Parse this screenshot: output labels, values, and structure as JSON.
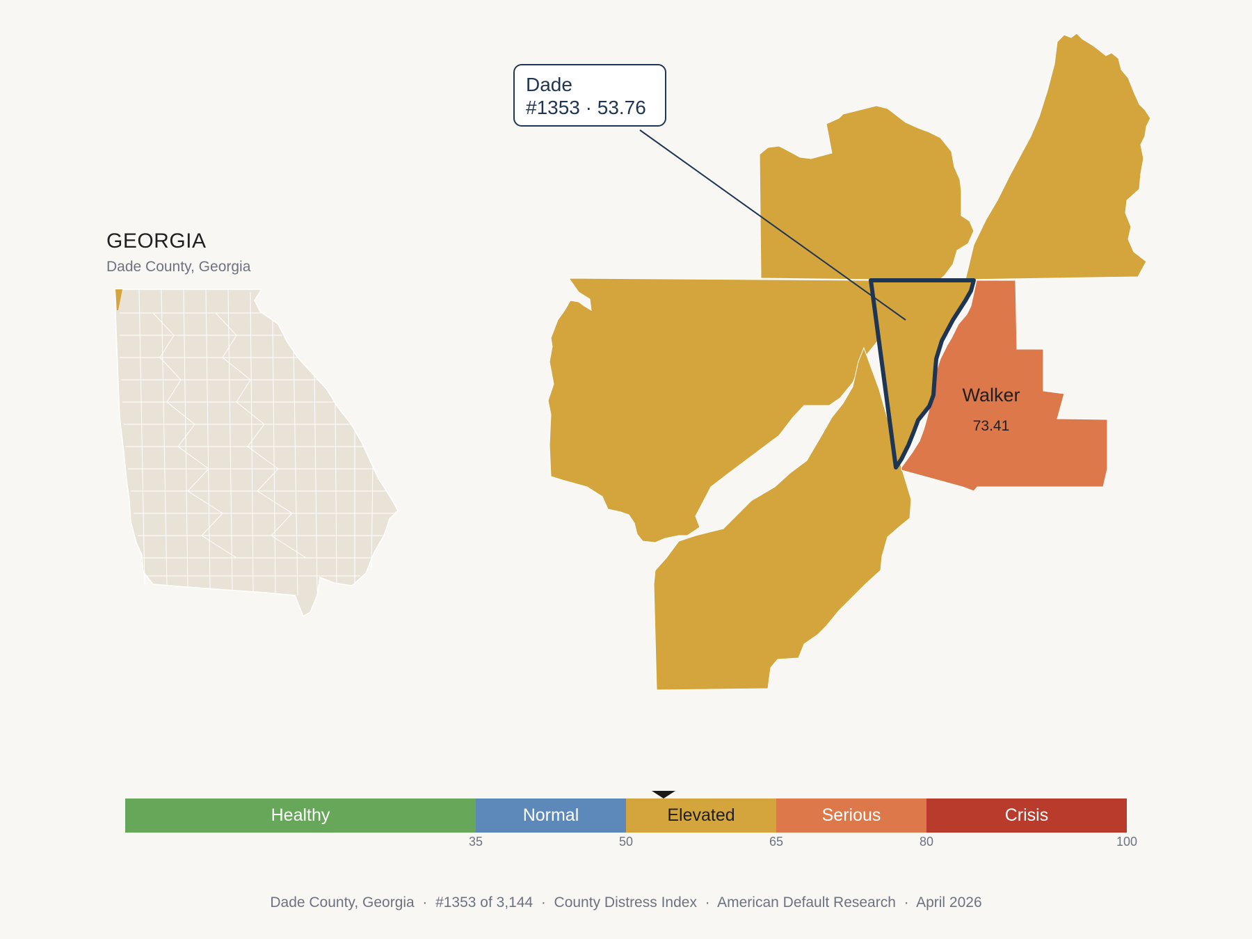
{
  "overview": {
    "state_name": "GEORGIA",
    "subtitle": "Dade County, Georgia"
  },
  "focus_county": {
    "name": "Dade",
    "rank_label": "#1353 · 53.76",
    "rank": 1353,
    "score": 53.76,
    "category": "Elevated",
    "fill": "#d4a53c",
    "outline": "#1e3553"
  },
  "neighbors": [
    {
      "name": "Walker",
      "value": "73.41",
      "category": "Serious",
      "fill": "#dc784a"
    }
  ],
  "neighbor_fill_default": "#d4a53c",
  "overview_fill": "#e8e2d7",
  "scale": {
    "bands": [
      {
        "label": "Healthy",
        "min": 0,
        "max": 35,
        "color": "#66a75a"
      },
      {
        "label": "Normal",
        "min": 35,
        "max": 50,
        "color": "#5d89ba"
      },
      {
        "label": "Elevated",
        "min": 50,
        "max": 65,
        "color": "#d4a53c"
      },
      {
        "label": "Serious",
        "min": 65,
        "max": 80,
        "color": "#dc784a"
      },
      {
        "label": "Crisis",
        "min": 80,
        "max": 100,
        "color": "#b93b2c"
      }
    ],
    "ticks": [
      "35",
      "50",
      "65",
      "80",
      "100"
    ],
    "marker_value": 53.76
  },
  "footer": {
    "text": "Dade County, Georgia  ·  #1353 of 3,144  ·  County Distress Index  ·  American Default Research  ·  April 2026"
  }
}
